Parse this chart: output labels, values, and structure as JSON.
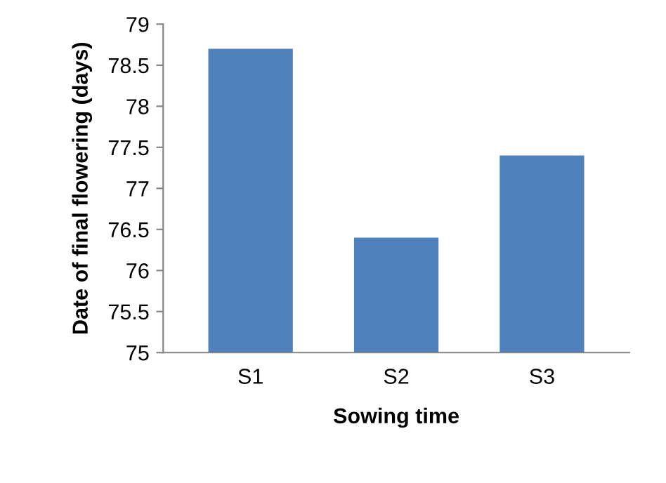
{
  "chart_data": {
    "type": "bar",
    "xlabel": "Sowing time",
    "ylabel": "Date of final flowering (days)",
    "categories": [
      "S1",
      "S2",
      "S3"
    ],
    "values": [
      78.7,
      76.4,
      77.4
    ],
    "color": "#4f81bd",
    "ylim": [
      75,
      79
    ],
    "yticks": [
      75,
      75.5,
      76,
      76.5,
      77,
      77.5,
      78,
      78.5,
      79
    ],
    "grid": false,
    "legend": false
  }
}
